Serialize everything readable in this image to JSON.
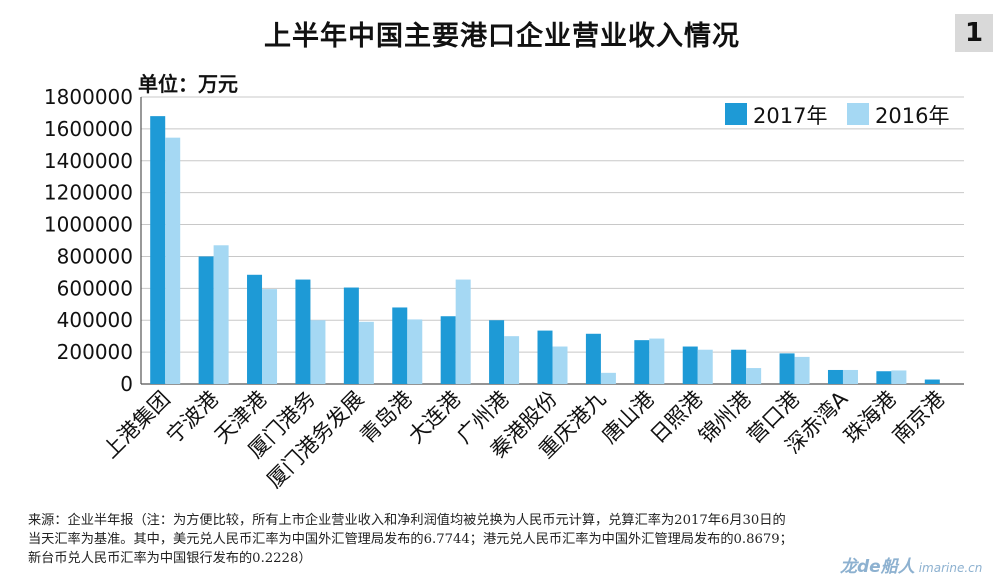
{
  "page_number": "1",
  "chart_data": {
    "type": "bar",
    "title": "上半年中国主要港口企业营业收入情况",
    "unit_label": "单位：万元",
    "categories": [
      "上港集团",
      "宁波港",
      "天津港",
      "厦门港务",
      "厦门港务发展",
      "青岛港",
      "大连港",
      "广州港",
      "秦港股份",
      "重庆港九",
      "唐山港",
      "日照港",
      "锦州港",
      "营口港",
      "深赤湾A",
      "珠海港",
      "南京港"
    ],
    "series": [
      {
        "name": "2017年",
        "color": "#1e9ad6",
        "values": [
          1680000,
          800000,
          685000,
          655000,
          605000,
          480000,
          425000,
          400000,
          335000,
          315000,
          275000,
          235000,
          215000,
          192000,
          88000,
          80000,
          28000
        ]
      },
      {
        "name": "2016年",
        "color": "#a5d8f3",
        "values": [
          1545000,
          870000,
          595000,
          400000,
          390000,
          405000,
          655000,
          300000,
          235000,
          70000,
          285000,
          215000,
          100000,
          170000,
          88000,
          85000,
          0
        ]
      }
    ],
    "yticks": [
      "0",
      "200000",
      "400000",
      "600000",
      "800000",
      "1000000",
      "1200000",
      "1400000",
      "1600000",
      "1800000"
    ],
    "ylim": [
      0,
      1800000
    ],
    "grid": true,
    "legend_position": "top-right"
  },
  "footnote": {
    "lines": [
      "来源：企业半年报（注：为方便比较，所有上市企业营业收入和净利润值均被兑换为人民币元计算，兑算汇率为2017年6月30日的",
      "当天汇率为基准。其中，美元兑人民币汇率为中国外汇管理局发布的6.7744；港元兑人民币汇率为中国外汇管理局发布的0.8679；",
      "新台币兑人民币汇率为中国银行发布的0.2228）"
    ]
  },
  "watermark": {
    "text": "龙de船人",
    "domain": "imarine.cn"
  }
}
